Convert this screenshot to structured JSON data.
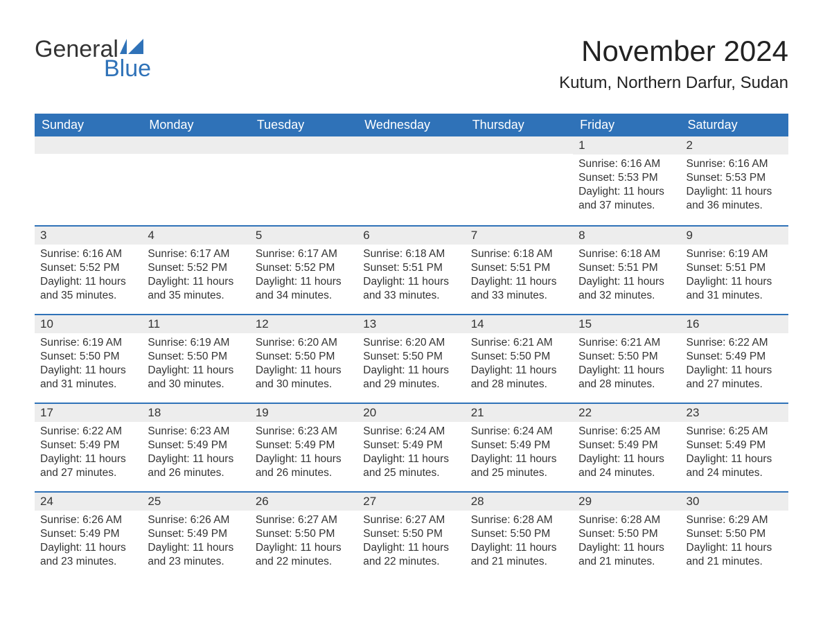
{
  "logo": {
    "text_top": "General",
    "text_bottom": "Blue",
    "flag_color": "#2f72b8"
  },
  "title": "November 2024",
  "location": "Kutum, Northern Darfur, Sudan",
  "colors": {
    "header_bg": "#2f72b8",
    "header_text": "#ffffff",
    "daynum_bg": "#ededed",
    "week_border": "#2f72b8",
    "body_text": "#333333",
    "background": "#ffffff"
  },
  "weekdays": [
    "Sunday",
    "Monday",
    "Tuesday",
    "Wednesday",
    "Thursday",
    "Friday",
    "Saturday"
  ],
  "weeks": [
    [
      {
        "day": "",
        "sunrise": "",
        "sunset": "",
        "daylight": ""
      },
      {
        "day": "",
        "sunrise": "",
        "sunset": "",
        "daylight": ""
      },
      {
        "day": "",
        "sunrise": "",
        "sunset": "",
        "daylight": ""
      },
      {
        "day": "",
        "sunrise": "",
        "sunset": "",
        "daylight": ""
      },
      {
        "day": "",
        "sunrise": "",
        "sunset": "",
        "daylight": ""
      },
      {
        "day": "1",
        "sunrise": "Sunrise: 6:16 AM",
        "sunset": "Sunset: 5:53 PM",
        "daylight": "Daylight: 11 hours and 37 minutes."
      },
      {
        "day": "2",
        "sunrise": "Sunrise: 6:16 AM",
        "sunset": "Sunset: 5:53 PM",
        "daylight": "Daylight: 11 hours and 36 minutes."
      }
    ],
    [
      {
        "day": "3",
        "sunrise": "Sunrise: 6:16 AM",
        "sunset": "Sunset: 5:52 PM",
        "daylight": "Daylight: 11 hours and 35 minutes."
      },
      {
        "day": "4",
        "sunrise": "Sunrise: 6:17 AM",
        "sunset": "Sunset: 5:52 PM",
        "daylight": "Daylight: 11 hours and 35 minutes."
      },
      {
        "day": "5",
        "sunrise": "Sunrise: 6:17 AM",
        "sunset": "Sunset: 5:52 PM",
        "daylight": "Daylight: 11 hours and 34 minutes."
      },
      {
        "day": "6",
        "sunrise": "Sunrise: 6:18 AM",
        "sunset": "Sunset: 5:51 PM",
        "daylight": "Daylight: 11 hours and 33 minutes."
      },
      {
        "day": "7",
        "sunrise": "Sunrise: 6:18 AM",
        "sunset": "Sunset: 5:51 PM",
        "daylight": "Daylight: 11 hours and 33 minutes."
      },
      {
        "day": "8",
        "sunrise": "Sunrise: 6:18 AM",
        "sunset": "Sunset: 5:51 PM",
        "daylight": "Daylight: 11 hours and 32 minutes."
      },
      {
        "day": "9",
        "sunrise": "Sunrise: 6:19 AM",
        "sunset": "Sunset: 5:51 PM",
        "daylight": "Daylight: 11 hours and 31 minutes."
      }
    ],
    [
      {
        "day": "10",
        "sunrise": "Sunrise: 6:19 AM",
        "sunset": "Sunset: 5:50 PM",
        "daylight": "Daylight: 11 hours and 31 minutes."
      },
      {
        "day": "11",
        "sunrise": "Sunrise: 6:19 AM",
        "sunset": "Sunset: 5:50 PM",
        "daylight": "Daylight: 11 hours and 30 minutes."
      },
      {
        "day": "12",
        "sunrise": "Sunrise: 6:20 AM",
        "sunset": "Sunset: 5:50 PM",
        "daylight": "Daylight: 11 hours and 30 minutes."
      },
      {
        "day": "13",
        "sunrise": "Sunrise: 6:20 AM",
        "sunset": "Sunset: 5:50 PM",
        "daylight": "Daylight: 11 hours and 29 minutes."
      },
      {
        "day": "14",
        "sunrise": "Sunrise: 6:21 AM",
        "sunset": "Sunset: 5:50 PM",
        "daylight": "Daylight: 11 hours and 28 minutes."
      },
      {
        "day": "15",
        "sunrise": "Sunrise: 6:21 AM",
        "sunset": "Sunset: 5:50 PM",
        "daylight": "Daylight: 11 hours and 28 minutes."
      },
      {
        "day": "16",
        "sunrise": "Sunrise: 6:22 AM",
        "sunset": "Sunset: 5:49 PM",
        "daylight": "Daylight: 11 hours and 27 minutes."
      }
    ],
    [
      {
        "day": "17",
        "sunrise": "Sunrise: 6:22 AM",
        "sunset": "Sunset: 5:49 PM",
        "daylight": "Daylight: 11 hours and 27 minutes."
      },
      {
        "day": "18",
        "sunrise": "Sunrise: 6:23 AM",
        "sunset": "Sunset: 5:49 PM",
        "daylight": "Daylight: 11 hours and 26 minutes."
      },
      {
        "day": "19",
        "sunrise": "Sunrise: 6:23 AM",
        "sunset": "Sunset: 5:49 PM",
        "daylight": "Daylight: 11 hours and 26 minutes."
      },
      {
        "day": "20",
        "sunrise": "Sunrise: 6:24 AM",
        "sunset": "Sunset: 5:49 PM",
        "daylight": "Daylight: 11 hours and 25 minutes."
      },
      {
        "day": "21",
        "sunrise": "Sunrise: 6:24 AM",
        "sunset": "Sunset: 5:49 PM",
        "daylight": "Daylight: 11 hours and 25 minutes."
      },
      {
        "day": "22",
        "sunrise": "Sunrise: 6:25 AM",
        "sunset": "Sunset: 5:49 PM",
        "daylight": "Daylight: 11 hours and 24 minutes."
      },
      {
        "day": "23",
        "sunrise": "Sunrise: 6:25 AM",
        "sunset": "Sunset: 5:49 PM",
        "daylight": "Daylight: 11 hours and 24 minutes."
      }
    ],
    [
      {
        "day": "24",
        "sunrise": "Sunrise: 6:26 AM",
        "sunset": "Sunset: 5:49 PM",
        "daylight": "Daylight: 11 hours and 23 minutes."
      },
      {
        "day": "25",
        "sunrise": "Sunrise: 6:26 AM",
        "sunset": "Sunset: 5:49 PM",
        "daylight": "Daylight: 11 hours and 23 minutes."
      },
      {
        "day": "26",
        "sunrise": "Sunrise: 6:27 AM",
        "sunset": "Sunset: 5:50 PM",
        "daylight": "Daylight: 11 hours and 22 minutes."
      },
      {
        "day": "27",
        "sunrise": "Sunrise: 6:27 AM",
        "sunset": "Sunset: 5:50 PM",
        "daylight": "Daylight: 11 hours and 22 minutes."
      },
      {
        "day": "28",
        "sunrise": "Sunrise: 6:28 AM",
        "sunset": "Sunset: 5:50 PM",
        "daylight": "Daylight: 11 hours and 21 minutes."
      },
      {
        "day": "29",
        "sunrise": "Sunrise: 6:28 AM",
        "sunset": "Sunset: 5:50 PM",
        "daylight": "Daylight: 11 hours and 21 minutes."
      },
      {
        "day": "30",
        "sunrise": "Sunrise: 6:29 AM",
        "sunset": "Sunset: 5:50 PM",
        "daylight": "Daylight: 11 hours and 21 minutes."
      }
    ]
  ]
}
